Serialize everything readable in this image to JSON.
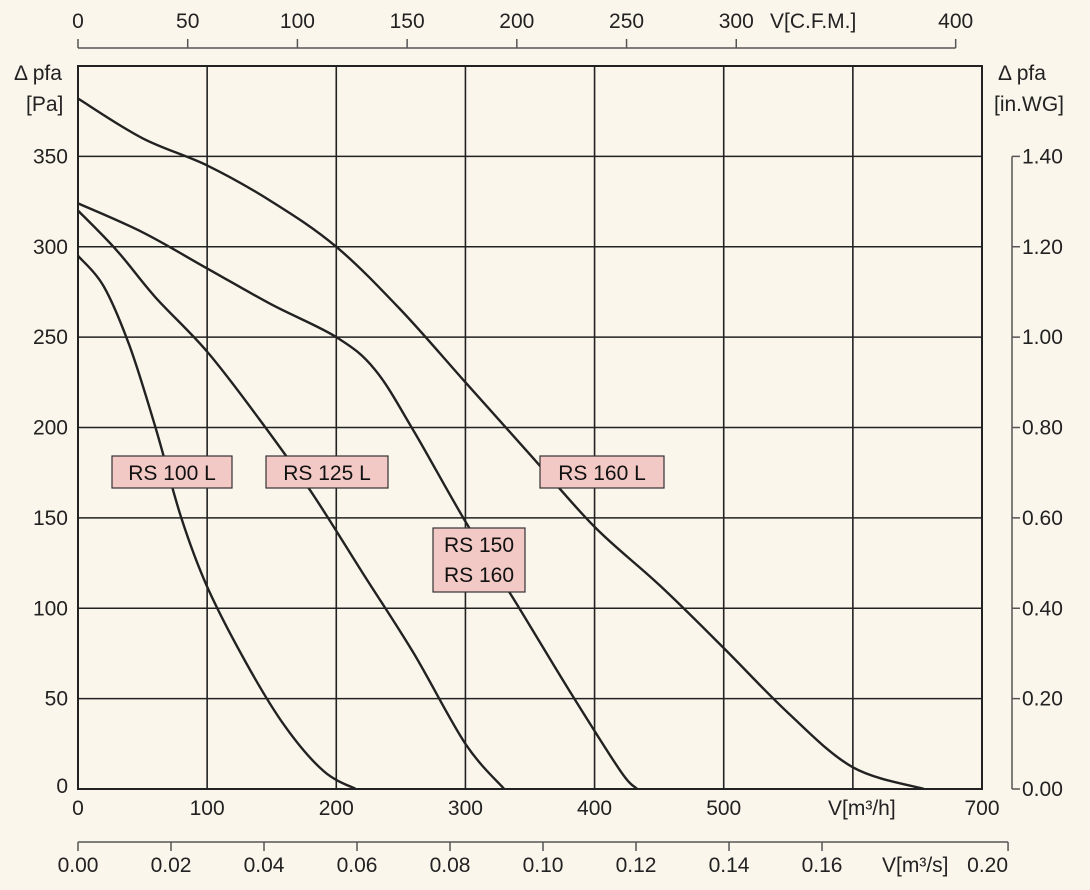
{
  "chart_data": {
    "type": "line",
    "x_bottom_label": "V[m³/h]",
    "x_bottom_ticks": [
      0,
      100,
      200,
      300,
      400,
      500,
      700
    ],
    "x_bottom_range": [
      0,
      700
    ],
    "x_top_label": "V[C.F.M.]",
    "x_top_ticks": [
      0,
      50,
      100,
      150,
      200,
      250,
      300,
      400
    ],
    "x_top_range": [
      0,
      412
    ],
    "x_secondary_label": "V[m³/s]",
    "x_secondary_ticks": [
      "0.00",
      "0.02",
      "0.04",
      "0.06",
      "0.08",
      "0.10",
      "0.12",
      "0.14",
      "0.16",
      "0.20"
    ],
    "x_secondary_range": [
      0,
      0.1944
    ],
    "y_left_label_line1": "Δ pfa",
    "y_left_label_line2": "[Pa]",
    "y_left_ticks": [
      0,
      50,
      100,
      150,
      200,
      250,
      300,
      350
    ],
    "y_left_range": [
      0,
      400
    ],
    "y_right_label_line1": "Δ pfa",
    "y_right_label_line2": "[in.WG]",
    "y_right_ticks": [
      "0.00",
      "0.20",
      "0.40",
      "0.60",
      "0.80",
      "1.00",
      "1.20",
      "1.40"
    ],
    "y_right_range": [
      0,
      1.4
    ],
    "grid": true,
    "series": [
      {
        "name": "RS 100 L",
        "label_lines": [
          "RS 100 L"
        ],
        "points": [
          [
            0,
            295
          ],
          [
            20,
            278
          ],
          [
            40,
            245
          ],
          [
            60,
            200
          ],
          [
            80,
            150
          ],
          [
            100,
            112
          ],
          [
            130,
            70
          ],
          [
            160,
            35
          ],
          [
            190,
            10
          ],
          [
            215,
            0
          ]
        ]
      },
      {
        "name": "RS 125 L",
        "label_lines": [
          "RS 125 L"
        ],
        "points": [
          [
            0,
            320
          ],
          [
            30,
            298
          ],
          [
            60,
            272
          ],
          [
            100,
            242
          ],
          [
            140,
            205
          ],
          [
            180,
            165
          ],
          [
            220,
            120
          ],
          [
            260,
            75
          ],
          [
            300,
            25
          ],
          [
            330,
            0
          ]
        ]
      },
      {
        "name": "RS 150 RS 160",
        "label_lines": [
          "RS 150",
          "RS 160"
        ],
        "points": [
          [
            0,
            324
          ],
          [
            50,
            308
          ],
          [
            100,
            288
          ],
          [
            150,
            268
          ],
          [
            200,
            250
          ],
          [
            230,
            232
          ],
          [
            260,
            198
          ],
          [
            300,
            148
          ],
          [
            340,
            102
          ],
          [
            380,
            55
          ],
          [
            420,
            10
          ],
          [
            433,
            0
          ]
        ]
      },
      {
        "name": "RS 160 L",
        "label_lines": [
          "RS 160 L"
        ],
        "points": [
          [
            0,
            382
          ],
          [
            50,
            360
          ],
          [
            100,
            345
          ],
          [
            150,
            325
          ],
          [
            200,
            300
          ],
          [
            250,
            265
          ],
          [
            300,
            225
          ],
          [
            350,
            185
          ],
          [
            400,
            145
          ],
          [
            450,
            113
          ],
          [
            500,
            78
          ],
          [
            550,
            42
          ],
          [
            600,
            12
          ],
          [
            655,
            0
          ]
        ]
      }
    ]
  }
}
